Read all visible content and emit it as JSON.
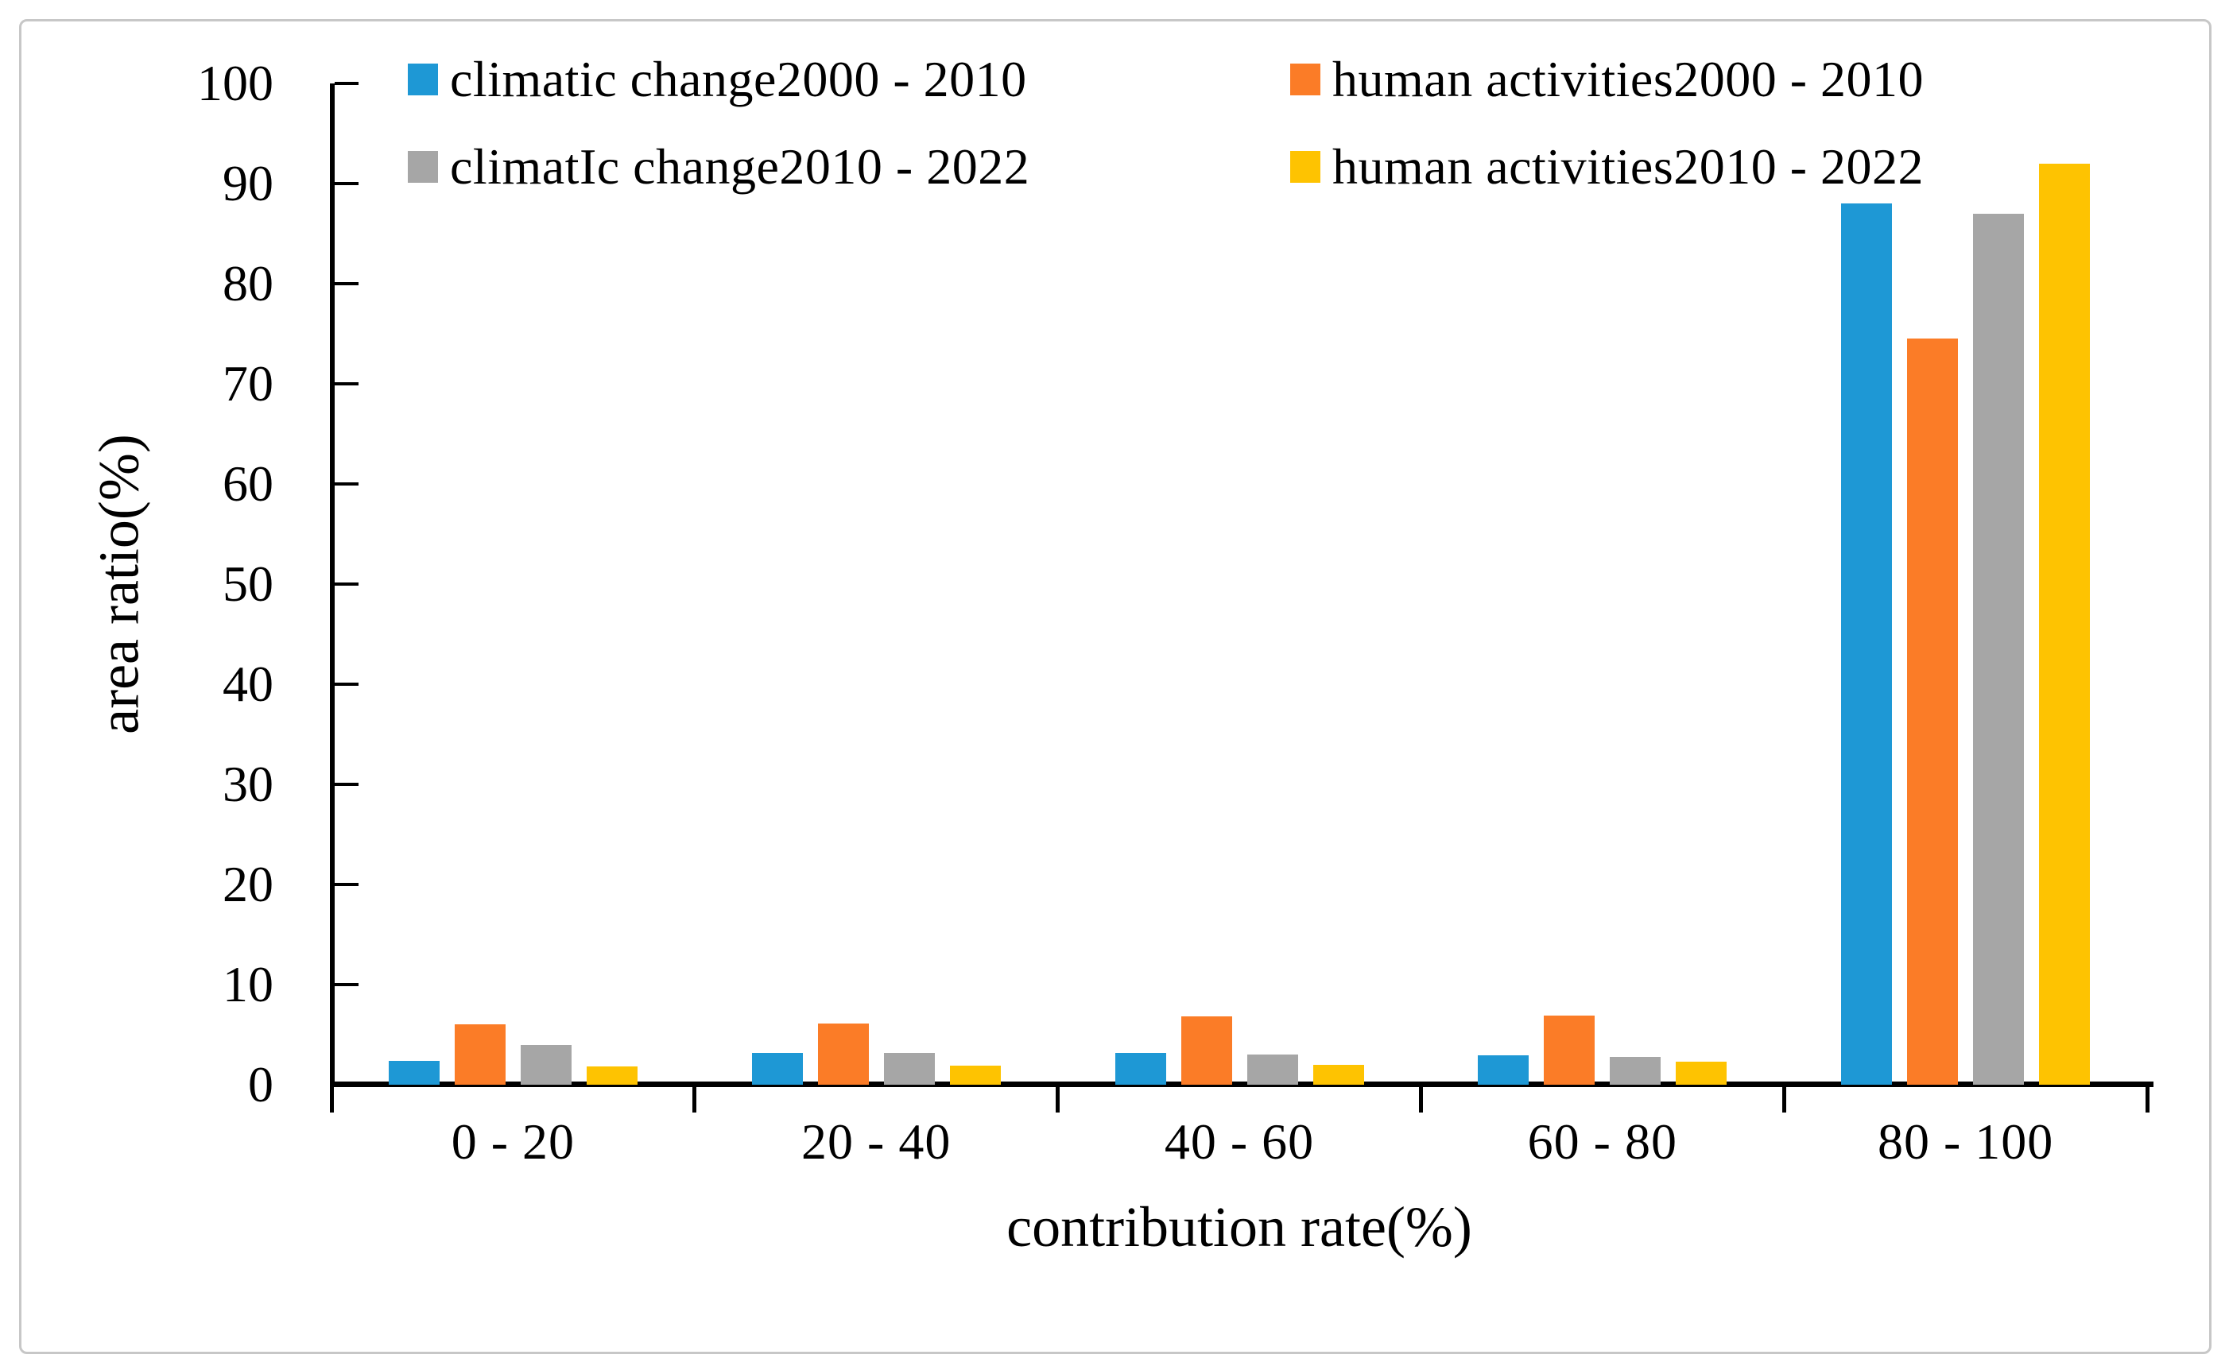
{
  "figure": {
    "background_color": "#ffffff",
    "frame_border_color": "#c7c7c7"
  },
  "chart_data": {
    "type": "bar",
    "title": "",
    "xlabel": "contribution rate(%)",
    "ylabel": "area ratio(%)",
    "categories": [
      "0 - 20",
      "20 - 40",
      "40 - 60",
      "60 - 80",
      "80 - 100"
    ],
    "series": [
      {
        "name": "climatic change2000 - 2010",
        "color": "#1E98D5",
        "values": [
          2.4,
          3.2,
          3.2,
          2.9,
          88.0
        ]
      },
      {
        "name": "human activities2000 - 2010",
        "color": "#FB7C27",
        "values": [
          6.0,
          6.1,
          6.8,
          6.9,
          74.5
        ]
      },
      {
        "name": "climatIc change2010 - 2022",
        "color": "#A6A6A6",
        "values": [
          4.0,
          3.2,
          3.0,
          2.8,
          87.0
        ]
      },
      {
        "name": "human activities2010 - 2022",
        "color": "#FEC301",
        "values": [
          1.8,
          1.9,
          2.0,
          2.3,
          92.0
        ]
      }
    ],
    "ylim": [
      0,
      100
    ],
    "yticks": [
      0,
      10,
      20,
      30,
      40,
      50,
      60,
      70,
      80,
      90,
      100
    ],
    "grid": false,
    "legend_position": "top-inside",
    "legend_rows": 2,
    "axis_color": "#000000",
    "text_color": "#000000"
  }
}
